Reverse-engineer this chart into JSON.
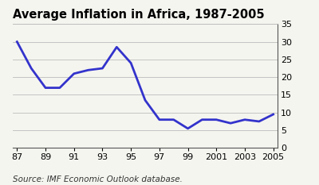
{
  "title": "Average Inflation in Africa, 1987-2005",
  "source": "Source: IMF Economic Outlook database.",
  "x": [
    0,
    1,
    2,
    3,
    4,
    5,
    6,
    7,
    8,
    9,
    10,
    11,
    12,
    13,
    14,
    15,
    16,
    17,
    18
  ],
  "y": [
    30.0,
    22.5,
    17.0,
    17.0,
    21.0,
    22.0,
    22.5,
    28.5,
    24.0,
    13.5,
    8.0,
    8.0,
    5.5,
    8.0,
    8.0,
    7.0,
    8.0,
    7.5,
    9.5
  ],
  "line_color": "#3333cc",
  "line_width": 2.0,
  "ylim": [
    0,
    35
  ],
  "yticks": [
    0,
    5,
    10,
    15,
    20,
    25,
    30,
    35
  ],
  "xtick_positions": [
    0,
    2,
    4,
    6,
    8,
    10,
    12,
    14,
    16,
    18
  ],
  "xtick_labels": [
    "87",
    "89",
    "91",
    "93",
    "95",
    "97",
    "99",
    "2001",
    "2003",
    "2005"
  ],
  "title_fontsize": 10.5,
  "source_fontsize": 7.5,
  "tick_fontsize": 8,
  "bg_color": "#f5f5f0",
  "grid_color": "#bbbbbb"
}
